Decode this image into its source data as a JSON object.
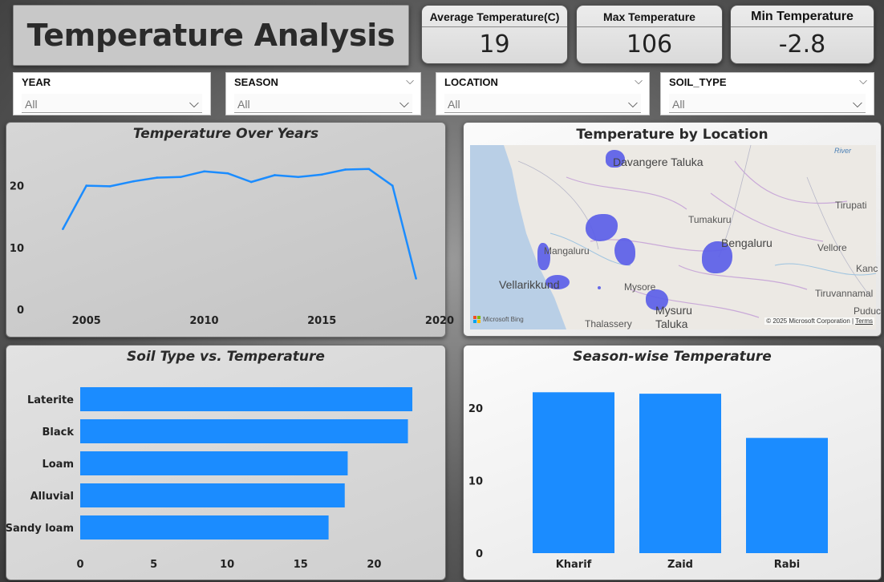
{
  "header": {
    "title": "Temperature Analysis"
  },
  "kpis": [
    {
      "label": "Average Temperature(C)",
      "value": "19"
    },
    {
      "label": "Max Temperature",
      "value": "106"
    },
    {
      "label": "Min Temperature",
      "value": "-2.8"
    }
  ],
  "filters": [
    {
      "label": "YEAR",
      "value": "All"
    },
    {
      "label": "SEASON",
      "value": "All"
    },
    {
      "label": "LOCATION",
      "value": "All"
    },
    {
      "label": "SOIL_TYPE",
      "value": "All"
    }
  ],
  "map": {
    "title": "Temperature by Location",
    "labels": [
      "Davangere Taluka",
      "Tumakuru",
      "Tirupati",
      "Bengaluru",
      "Mangaluru",
      "Vellore",
      "Kanc",
      "Vellarikkund",
      "Mysore",
      "Tiruvannamal",
      "Puduc",
      "Thalassery",
      "Mysuru",
      "Taluka",
      "River"
    ],
    "attribution": "Microsoft Bing",
    "copyright": "© 2025 Microsoft Corporation",
    "terms": "Terms",
    "point_color": "#5b5ee8"
  },
  "accent_color": "#1b8cff",
  "chart_data": [
    {
      "type": "line",
      "title": "Temperature Over Years",
      "x": [
        2004,
        2005,
        2006,
        2007,
        2008,
        2009,
        2010,
        2011,
        2012,
        2013,
        2014,
        2015,
        2016,
        2017,
        2018,
        2019
      ],
      "y": [
        13,
        20,
        19.9,
        20.7,
        21.3,
        21.4,
        22.3,
        22,
        20.6,
        21.7,
        21.4,
        21.8,
        22.6,
        22.7,
        20,
        5
      ],
      "xticks": [
        "2005",
        "2010",
        "2015",
        "2020"
      ],
      "yticks": [
        "0",
        "10",
        "20"
      ],
      "xlim": [
        2003,
        2020
      ],
      "ylim": [
        0,
        25
      ],
      "xlabel": "",
      "ylabel": "",
      "grid": false
    },
    {
      "type": "bar",
      "orientation": "horizontal",
      "title": "Soil Type vs. Temperature",
      "categories": [
        "Laterite",
        "Black",
        "Loam",
        "Alluvial",
        "Sandy loam"
      ],
      "values": [
        22.6,
        22.3,
        18.2,
        18.0,
        16.9
      ],
      "xticks": [
        "0",
        "5",
        "10",
        "15",
        "20"
      ],
      "xlim": [
        0,
        25
      ],
      "xlabel": "",
      "ylabel": ""
    },
    {
      "type": "bar",
      "title": "Season-wise Temperature",
      "categories": [
        "Kharif",
        "Zaid",
        "Rabi"
      ],
      "values": [
        22.2,
        22.0,
        15.9
      ],
      "yticks": [
        "0",
        "10",
        "20"
      ],
      "ylim": [
        0,
        25
      ],
      "xlabel": "",
      "ylabel": ""
    }
  ]
}
